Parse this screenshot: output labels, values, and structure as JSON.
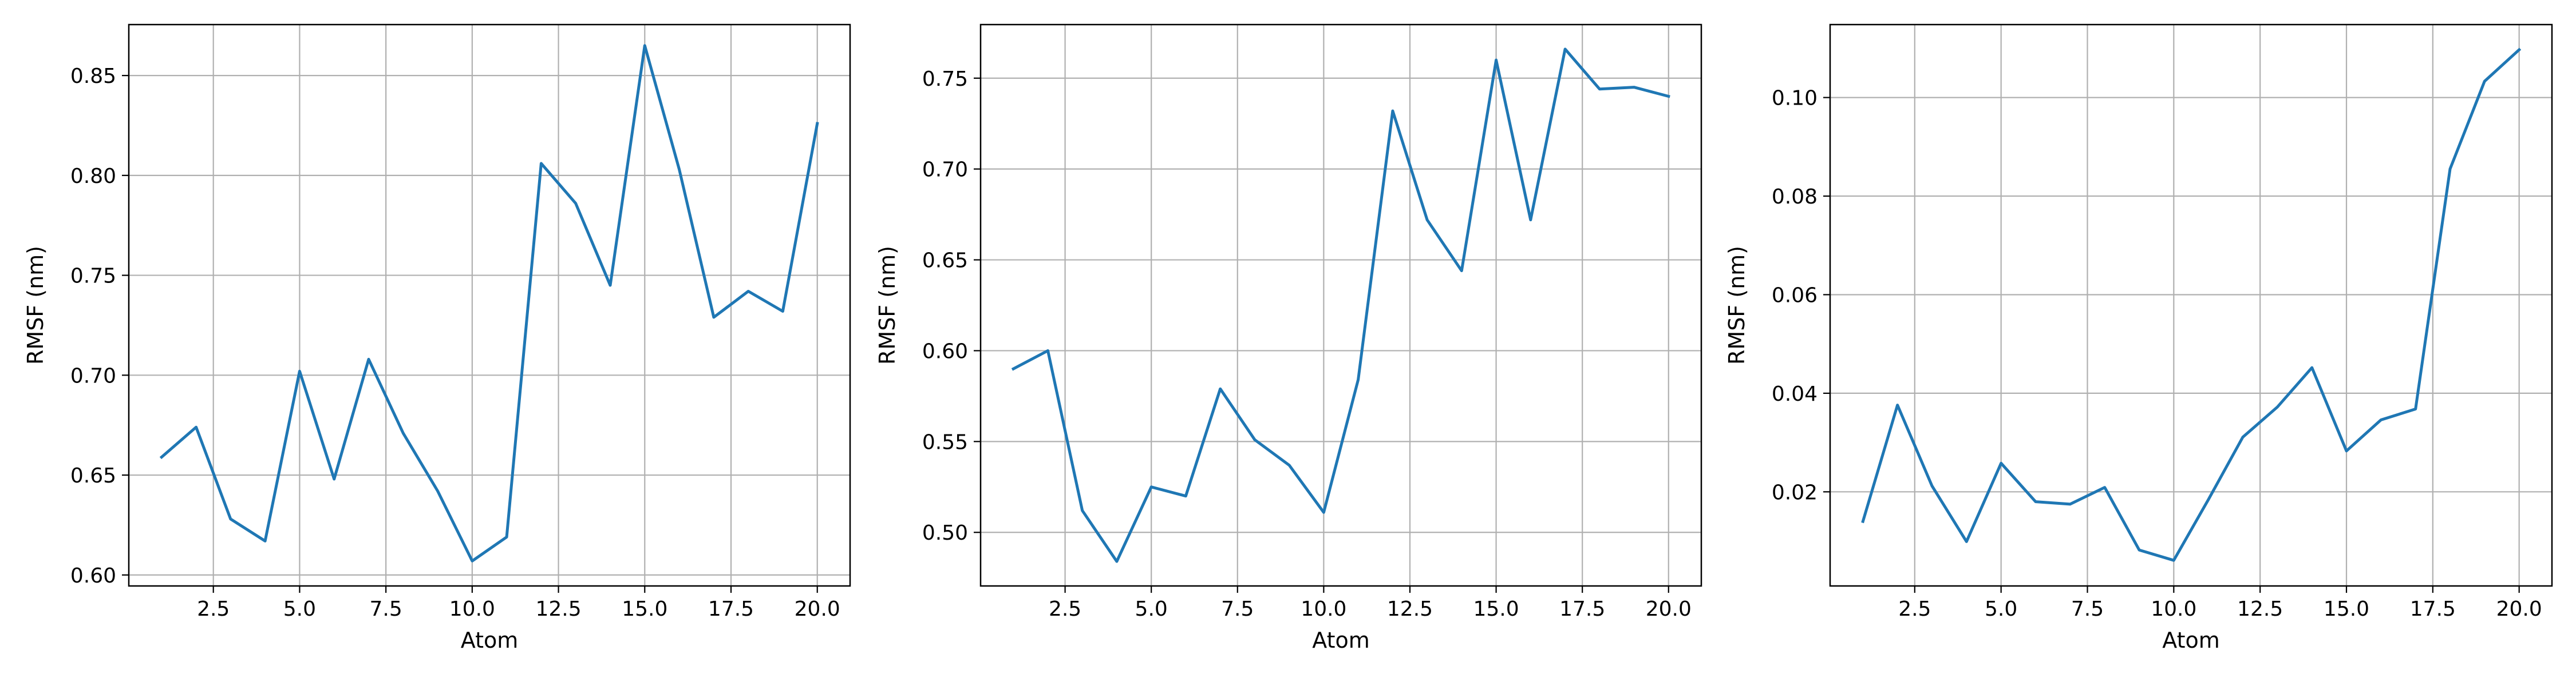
{
  "chart_data": [
    {
      "type": "line",
      "title": "",
      "xlabel": "Atom",
      "ylabel": "RMSF (nm)",
      "grid": true,
      "line_color": "#1f77b4",
      "xlim": [
        0.05,
        20.95
      ],
      "ylim": [
        0.5945,
        0.8755
      ],
      "xticks": [
        2.5,
        5.0,
        7.5,
        10.0,
        12.5,
        15.0,
        17.5,
        20.0
      ],
      "xtick_labels": [
        "2.5",
        "5.0",
        "7.5",
        "10.0",
        "12.5",
        "15.0",
        "17.5",
        "20.0"
      ],
      "yticks": [
        0.6,
        0.65,
        0.7,
        0.75,
        0.8,
        0.85
      ],
      "ytick_labels": [
        "0.60",
        "0.65",
        "0.70",
        "0.75",
        "0.80",
        "0.85"
      ],
      "x": [
        1,
        2,
        3,
        4,
        5,
        6,
        7,
        8,
        9,
        10,
        11,
        12,
        13,
        14,
        15,
        16,
        17,
        18,
        19,
        20
      ],
      "y": [
        0.659,
        0.674,
        0.628,
        0.617,
        0.702,
        0.648,
        0.708,
        0.671,
        0.642,
        0.607,
        0.619,
        0.806,
        0.786,
        0.745,
        0.865,
        0.803,
        0.729,
        0.742,
        0.732,
        0.826
      ]
    },
    {
      "type": "line",
      "title": "",
      "xlabel": "Atom",
      "ylabel": "RMSF (nm)",
      "grid": true,
      "line_color": "#1f77b4",
      "xlim": [
        0.05,
        20.95
      ],
      "ylim": [
        0.4705,
        0.7795
      ],
      "xticks": [
        2.5,
        5.0,
        7.5,
        10.0,
        12.5,
        15.0,
        17.5,
        20.0
      ],
      "xtick_labels": [
        "2.5",
        "5.0",
        "7.5",
        "10.0",
        "12.5",
        "15.0",
        "17.5",
        "20.0"
      ],
      "yticks": [
        0.5,
        0.55,
        0.6,
        0.65,
        0.7,
        0.75
      ],
      "ytick_labels": [
        "0.50",
        "0.55",
        "0.60",
        "0.65",
        "0.70",
        "0.75"
      ],
      "x": [
        1,
        2,
        3,
        4,
        5,
        6,
        7,
        8,
        9,
        10,
        11,
        12,
        13,
        14,
        15,
        16,
        17,
        18,
        19,
        20
      ],
      "y": [
        0.59,
        0.6,
        0.512,
        0.484,
        0.525,
        0.52,
        0.579,
        0.551,
        0.537,
        0.511,
        0.584,
        0.732,
        0.672,
        0.644,
        0.76,
        0.672,
        0.766,
        0.744,
        0.745,
        0.74
      ]
    },
    {
      "type": "line",
      "title": "",
      "xlabel": "Atom",
      "ylabel": "RMSF (nm)",
      "grid": true,
      "line_color": "#1f77b4",
      "xlim": [
        0.05,
        20.95
      ],
      "ylim": [
        0.0009,
        0.1148
      ],
      "xticks": [
        2.5,
        5.0,
        7.5,
        10.0,
        12.5,
        15.0,
        17.5,
        20.0
      ],
      "xtick_labels": [
        "2.5",
        "5.0",
        "7.5",
        "10.0",
        "12.5",
        "15.0",
        "17.5",
        "20.0"
      ],
      "yticks": [
        0.02,
        0.04,
        0.06,
        0.08,
        0.1
      ],
      "ytick_labels": [
        "0.02",
        "0.04",
        "0.06",
        "0.08",
        "0.10"
      ],
      "x": [
        1,
        2,
        3,
        4,
        5,
        6,
        7,
        8,
        9,
        10,
        11,
        12,
        13,
        14,
        15,
        16,
        17,
        18,
        19,
        20
      ],
      "y": [
        0.014,
        0.0376,
        0.0212,
        0.0099,
        0.0258,
        0.018,
        0.0175,
        0.0209,
        0.0082,
        0.0061,
        0.0184,
        0.0311,
        0.0372,
        0.0452,
        0.0283,
        0.0346,
        0.0368,
        0.0855,
        0.1033,
        0.1097
      ]
    }
  ]
}
